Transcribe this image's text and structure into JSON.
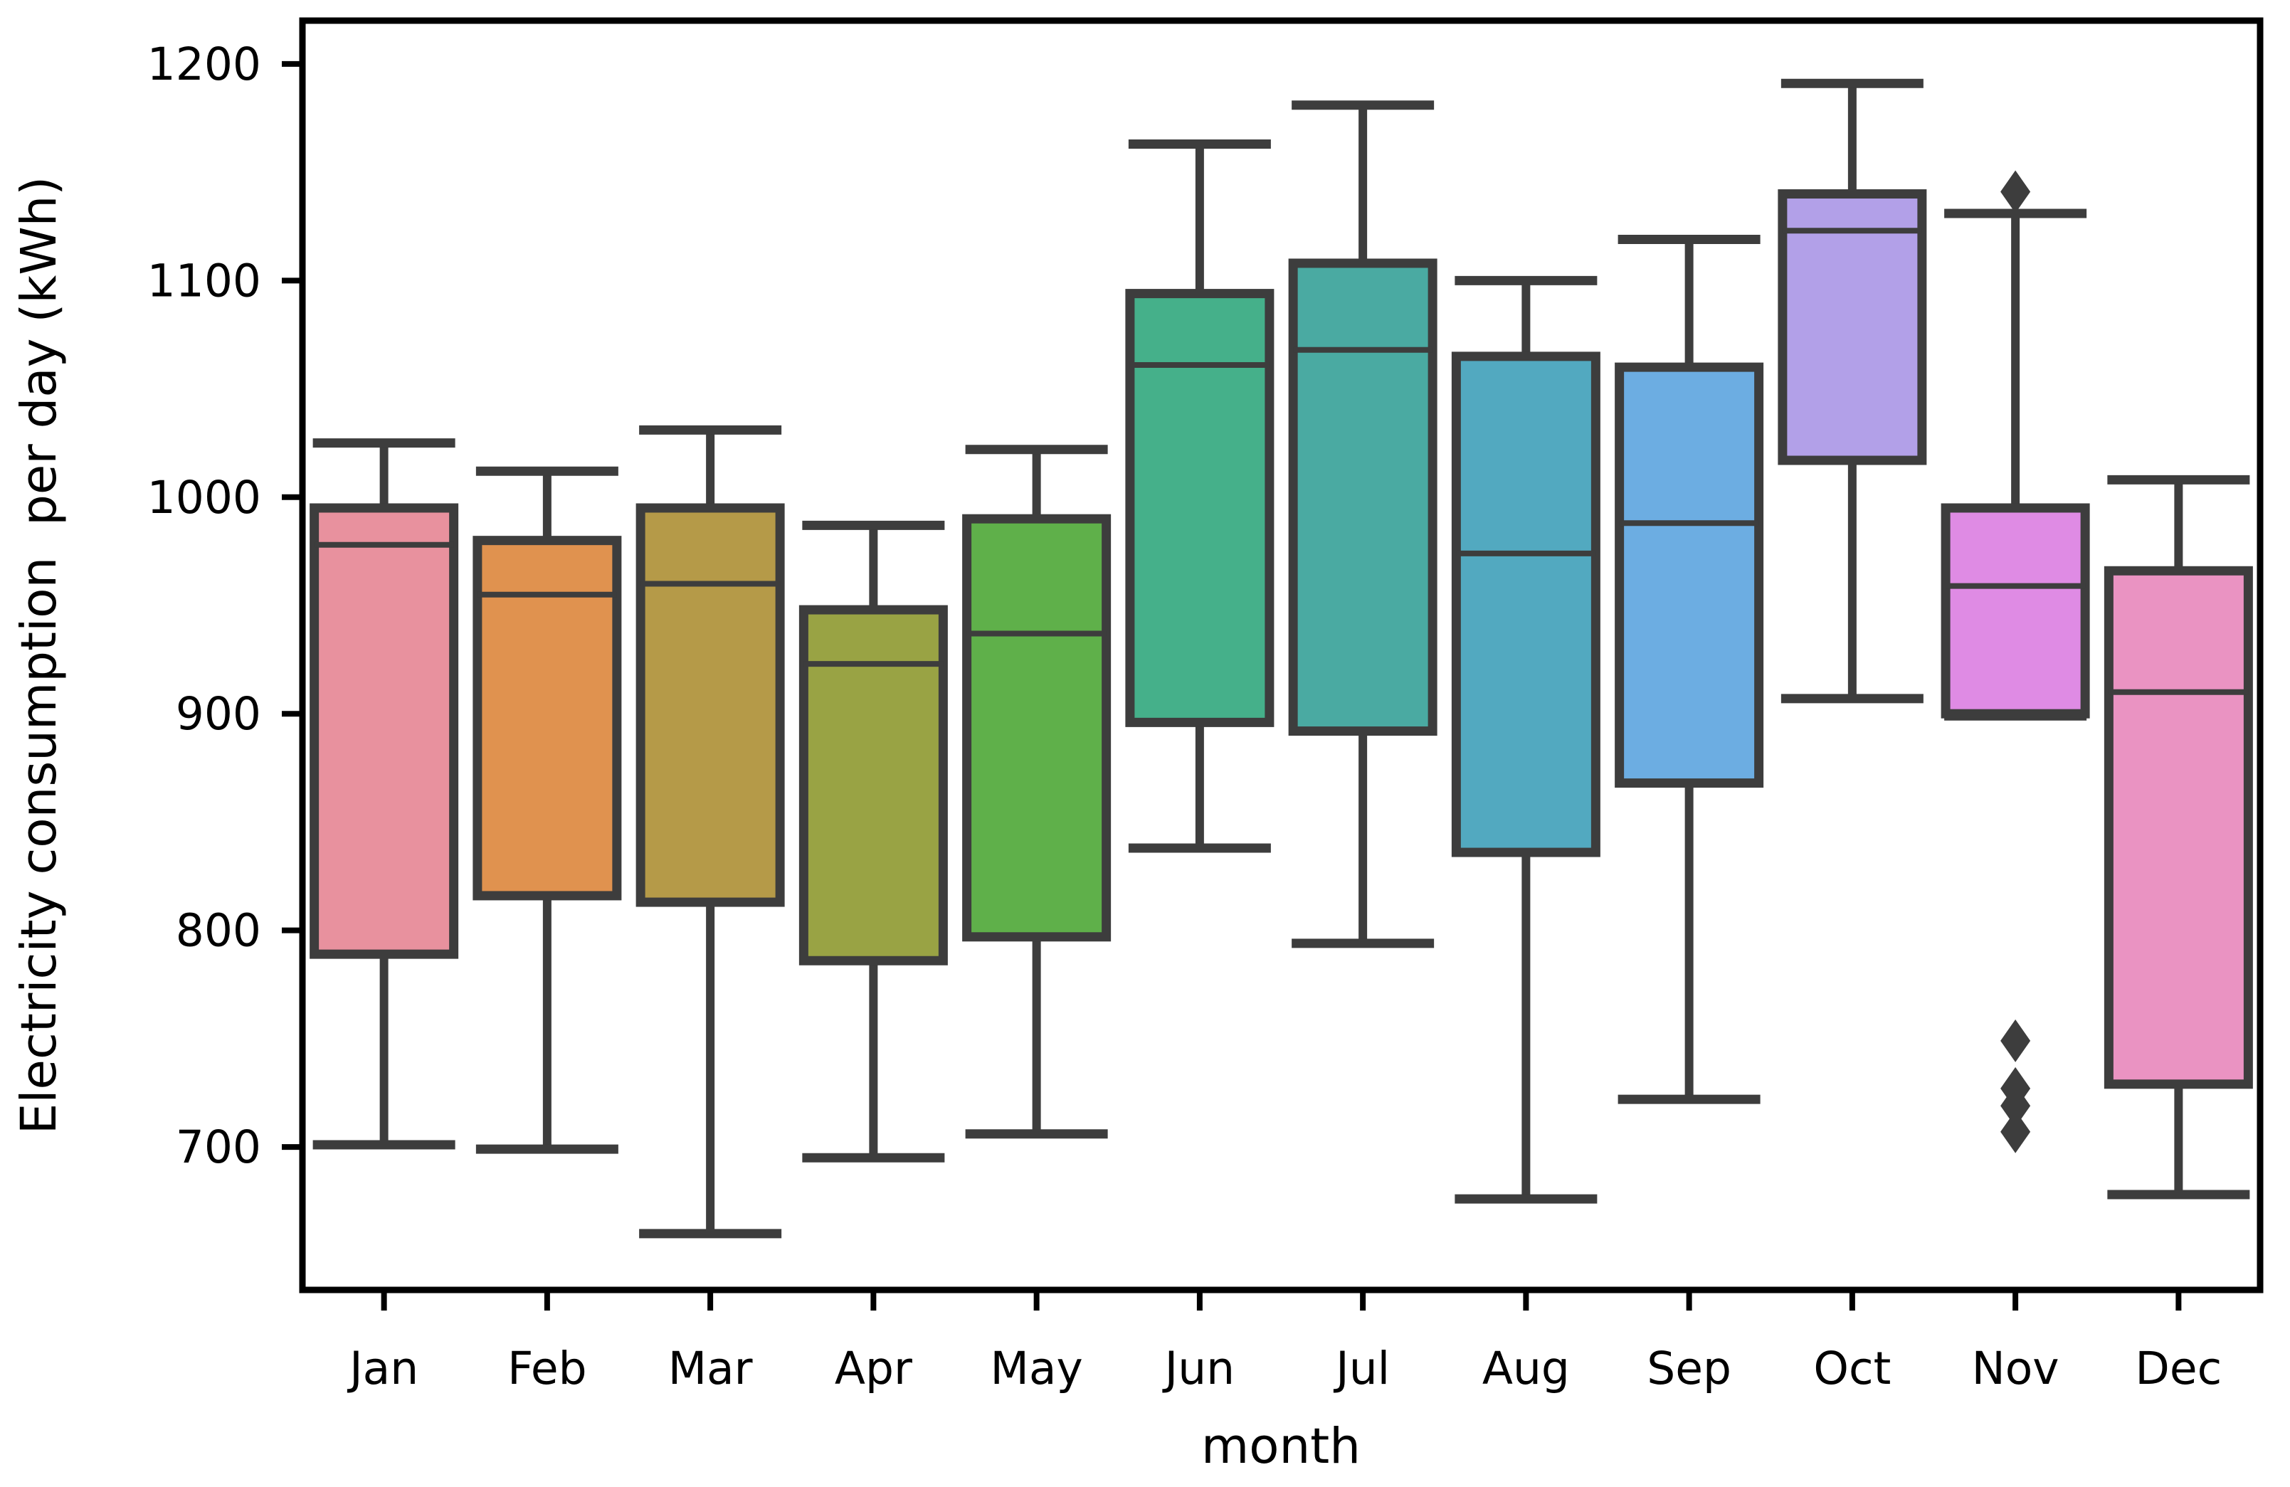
{
  "figure_title": "",
  "chart_data": {
    "type": "box",
    "title": "",
    "xlabel": "month",
    "ylabel": "Electricity consumption  per day (kWh)",
    "categories": [
      "Jan",
      "Feb",
      "Mar",
      "Apr",
      "May",
      "Jun",
      "Jul",
      "Aug",
      "Sep",
      "Oct",
      "Nov",
      "Dec"
    ],
    "ylim": [
      634,
      1220
    ],
    "yticks": [
      700,
      800,
      900,
      1000,
      1100,
      1200
    ],
    "grid": false,
    "legend": "none",
    "units": "kWh",
    "boxes": [
      {
        "month": "Jan",
        "whisker_low": 701,
        "q1": 789,
        "median": 978,
        "q3": 995,
        "whisker_high": 1025,
        "outliers": [],
        "color": "#e8919e"
      },
      {
        "month": "Feb",
        "whisker_low": 699,
        "q1": 816,
        "median": 955,
        "q3": 980,
        "whisker_high": 1012,
        "outliers": [],
        "color": "#e0924f"
      },
      {
        "month": "Mar",
        "whisker_low": 660,
        "q1": 813,
        "median": 960,
        "q3": 995,
        "whisker_high": 1031,
        "outliers": [],
        "color": "#b59a48"
      },
      {
        "month": "Apr",
        "whisker_low": 695,
        "q1": 786,
        "median": 923,
        "q3": 948,
        "whisker_high": 987,
        "outliers": [],
        "color": "#99a344"
      },
      {
        "month": "May",
        "whisker_low": 706,
        "q1": 797,
        "median": 937,
        "q3": 990,
        "whisker_high": 1022,
        "outliers": [],
        "color": "#5fb04a"
      },
      {
        "month": "Jun",
        "whisker_low": 838,
        "q1": 896,
        "median": 1061,
        "q3": 1094,
        "whisker_high": 1163,
        "outliers": [],
        "color": "#45b08a"
      },
      {
        "month": "Jul",
        "whisker_low": 794,
        "q1": 892,
        "median": 1068,
        "q3": 1108,
        "whisker_high": 1181,
        "outliers": [],
        "color": "#4aaaa2"
      },
      {
        "month": "Aug",
        "whisker_low": 676,
        "q1": 836,
        "median": 974,
        "q3": 1065,
        "whisker_high": 1100,
        "outliers": [],
        "color": "#52a9c0"
      },
      {
        "month": "Sep",
        "whisker_low": 722,
        "q1": 868,
        "median": 988,
        "q3": 1060,
        "whisker_high": 1119,
        "outliers": [],
        "color": "#6cade2"
      },
      {
        "month": "Oct",
        "whisker_low": 907,
        "q1": 1017,
        "median": 1123,
        "q3": 1140,
        "whisker_high": 1191,
        "outliers": [],
        "color": "#b2a0e8"
      },
      {
        "month": "Nov",
        "whisker_low": 899,
        "q1": 900,
        "median": 959,
        "q3": 995,
        "whisker_high": 1131,
        "outliers": [
          1141,
          749,
          727,
          719,
          707
        ],
        "color": "#df8be4"
      },
      {
        "month": "Dec",
        "whisker_low": 678,
        "q1": 729,
        "median": 910,
        "q3": 966,
        "whisker_high": 1008,
        "outliers": [],
        "color": "#ea93c2"
      }
    ],
    "line_color": "#3d3d3d",
    "spine_color": "#000000",
    "background_color": "#ffffff",
    "text_color": "#000000"
  }
}
